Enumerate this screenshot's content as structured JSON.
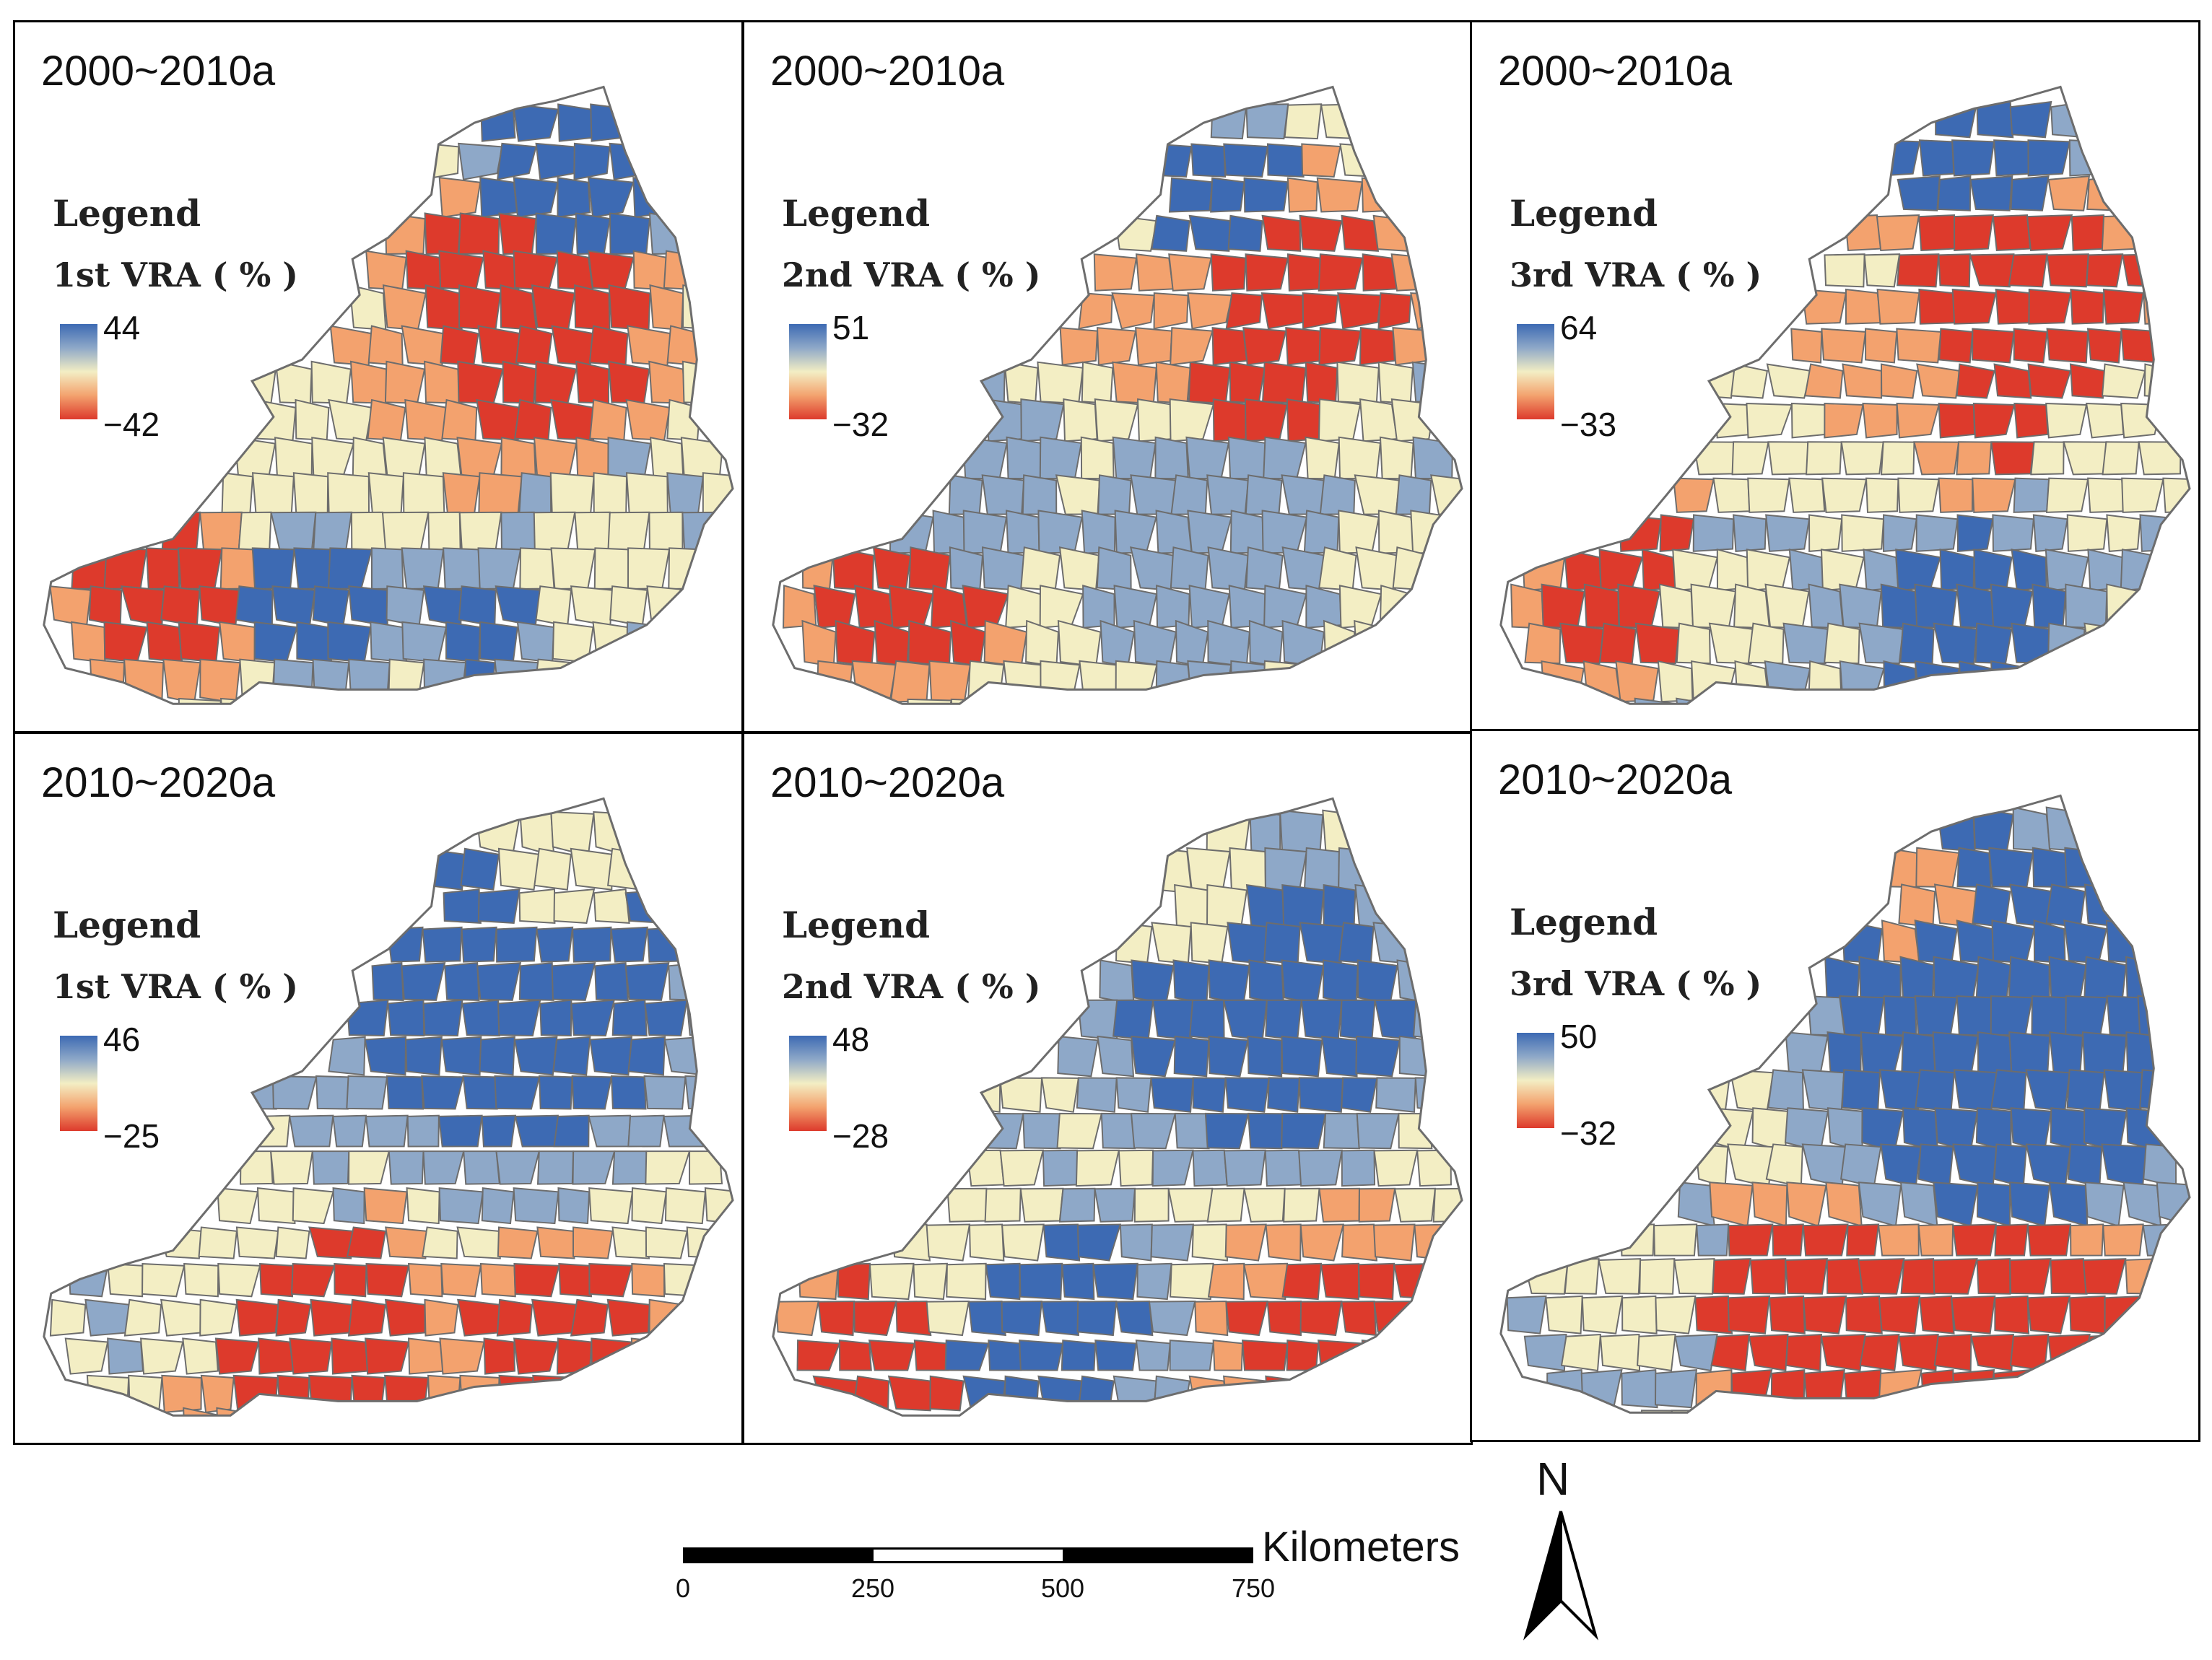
{
  "panels": [
    {
      "period": "2000~2010a",
      "legend_title": "Legend",
      "legend_label": "1st VRA ( % )",
      "max": "44",
      "min": "−42"
    },
    {
      "period": "2000~2010a",
      "legend_title": "Legend",
      "legend_label": "2nd VRA ( % )",
      "max": "51",
      "min": "−32"
    },
    {
      "period": "2000~2010a",
      "legend_title": "Legend",
      "legend_label": "3rd VRA ( % )",
      "max": "64",
      "min": "−33"
    },
    {
      "period": "2010~2020a",
      "legend_title": "Legend",
      "legend_label": "1st VRA ( % )",
      "max": "46",
      "min": "−25"
    },
    {
      "period": "2010~2020a",
      "legend_title": "Legend",
      "legend_label": "2nd VRA ( % )",
      "max": "48",
      "min": "−28"
    },
    {
      "period": "2010~2020a",
      "legend_title": "Legend",
      "legend_label": "3rd VRA ( % )",
      "max": "50",
      "min": "−32"
    }
  ],
  "scale": {
    "units": "Kilometers",
    "ticks": [
      "0",
      "250",
      "500",
      "750"
    ]
  },
  "north": {
    "label": "N"
  },
  "colors": {
    "blue": "#3d6ab3",
    "light_blue": "#8ea8c8",
    "cream": "#f3eec4",
    "orange": "#f3a26e",
    "red": "#dd3a2c",
    "border": "#6d6d6d"
  }
}
